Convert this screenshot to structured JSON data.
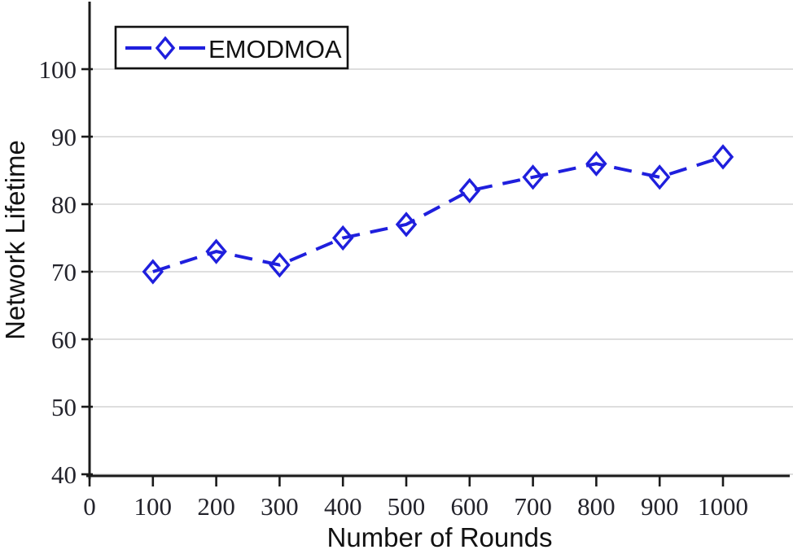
{
  "chart_data": {
    "type": "line",
    "title": "",
    "xlabel": "Number of Rounds",
    "ylabel": "Network Lifetime",
    "x": [
      100,
      200,
      300,
      400,
      500,
      600,
      700,
      800,
      900,
      1000
    ],
    "series": [
      {
        "name": "EMODMOA",
        "values": [
          70,
          73,
          71,
          75,
          77,
          82,
          84,
          86,
          84,
          87
        ],
        "color": "#1f1fdd",
        "marker": "open-diamond",
        "line_style": "dashed"
      }
    ],
    "x_ticks": [
      0,
      100,
      200,
      300,
      400,
      500,
      600,
      700,
      800,
      900,
      1000
    ],
    "y_ticks": [
      40,
      50,
      60,
      70,
      80,
      90,
      100
    ],
    "xlim": [
      0,
      1105
    ],
    "ylim": [
      40,
      110
    ],
    "grid": "horizontal",
    "legend_position": "top-left",
    "colors": {
      "background": "#ffffff",
      "grid": "#d9d9d9",
      "axis": "#1a1a1a",
      "tick_label": "#23232b",
      "legend_border": "#111111"
    }
  }
}
